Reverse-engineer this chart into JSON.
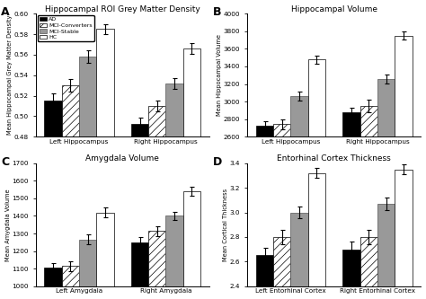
{
  "title_A": "Hippocampal ROI Grey Matter Density",
  "title_B": "Hippocampal Volume",
  "title_C": "Amygdala Volume",
  "title_D": "Entorhinal Cortex Thickness",
  "ylabel_A": "Mean Hippocampal Grey Matter Density",
  "ylabel_B": "Mean Hippocampal Volume",
  "ylabel_C": "Mean Amygdala Volume",
  "ylabel_D": "Mean Cortical Thickness",
  "legend_labels": [
    "AD",
    "MCI-Converters",
    "MCI-Stable",
    "HC"
  ],
  "A": {
    "groups": [
      "Left Hippocampus",
      "Right Hippocampus"
    ],
    "values": [
      [
        0.515,
        0.53,
        0.558,
        0.585
      ],
      [
        0.492,
        0.51,
        0.532,
        0.566
      ]
    ],
    "errors": [
      [
        0.007,
        0.006,
        0.006,
        0.005
      ],
      [
        0.007,
        0.005,
        0.005,
        0.005
      ]
    ],
    "ylim": [
      0.48,
      0.6
    ],
    "yticks": [
      0.48,
      0.5,
      0.52,
      0.54,
      0.56,
      0.58,
      0.6
    ]
  },
  "B": {
    "groups": [
      "Left Hippocampus",
      "Right Hippocampus"
    ],
    "values": [
      [
        2720,
        2740,
        3060,
        3480
      ],
      [
        2880,
        2950,
        3260,
        3750
      ]
    ],
    "errors": [
      [
        60,
        55,
        50,
        45
      ],
      [
        50,
        70,
        50,
        45
      ]
    ],
    "ylim": [
      2600,
      4000
    ],
    "yticks": [
      2600,
      2800,
      3000,
      3200,
      3400,
      3600,
      3800,
      4000
    ]
  },
  "C": {
    "groups": [
      "Left Amygdala",
      "Right Amygdala"
    ],
    "values": [
      [
        1105,
        1115,
        1265,
        1420
      ],
      [
        1250,
        1315,
        1400,
        1540
      ]
    ],
    "errors": [
      [
        28,
        28,
        28,
        28
      ],
      [
        30,
        28,
        25,
        25
      ]
    ],
    "ylim": [
      1000,
      1700
    ],
    "yticks": [
      1000,
      1100,
      1200,
      1300,
      1400,
      1500,
      1600,
      1700
    ]
  },
  "D": {
    "groups": [
      "Left Entorhinal Cortex",
      "Right Entorhinal Cortex"
    ],
    "values": [
      [
        2.65,
        2.8,
        3.0,
        3.32
      ],
      [
        2.7,
        2.8,
        3.07,
        3.35
      ]
    ],
    "errors": [
      [
        0.06,
        0.06,
        0.05,
        0.04
      ],
      [
        0.06,
        0.06,
        0.05,
        0.04
      ]
    ],
    "ylim": [
      2.4,
      3.4
    ],
    "yticks": [
      2.4,
      2.6,
      2.8,
      3.0,
      3.2,
      3.4
    ]
  }
}
